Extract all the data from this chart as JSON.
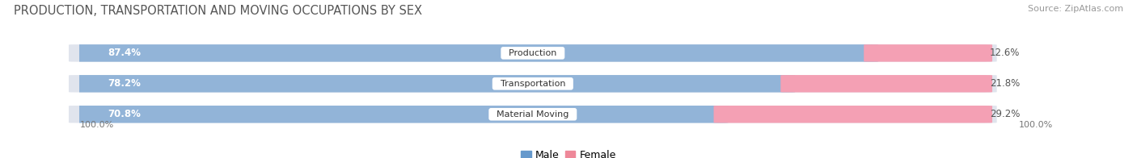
{
  "title": "PRODUCTION, TRANSPORTATION AND MOVING OCCUPATIONS BY SEX",
  "source_text": "Source: ZipAtlas.com",
  "categories": [
    "Production",
    "Transportation",
    "Material Moving"
  ],
  "male_values": [
    87.4,
    78.2,
    70.8
  ],
  "female_values": [
    12.6,
    21.8,
    29.2
  ],
  "male_color": "#92b4d8",
  "female_color": "#f4a0b4",
  "bar_bg_color": "#e0e4ed",
  "male_label": "Male",
  "female_label": "Female",
  "label_color_male": "#6699cc",
  "label_color_female": "#ee8899",
  "title_fontsize": 10.5,
  "source_fontsize": 8,
  "tick_label": "100.0%",
  "figsize": [
    14.06,
    1.96
  ],
  "dpi": 100
}
